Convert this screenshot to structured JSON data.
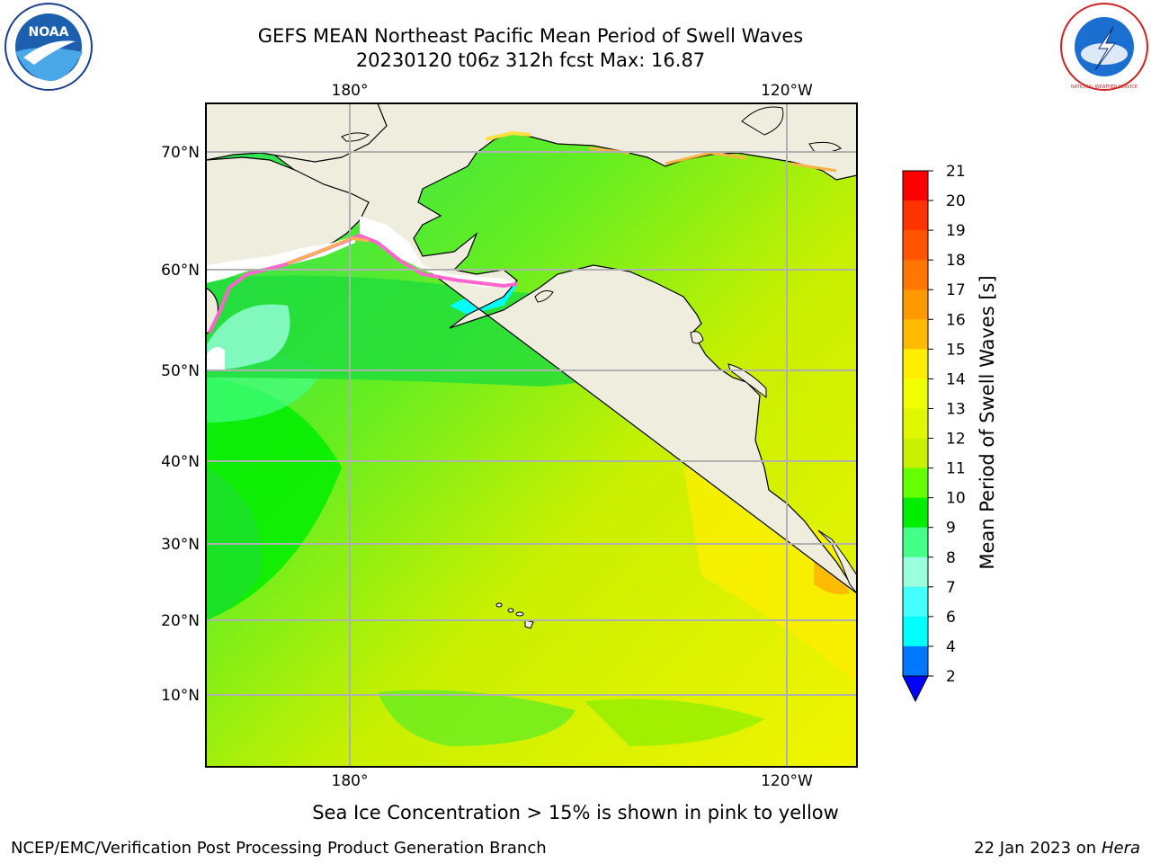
{
  "header": {
    "title_line1": "GEFS MEAN Northeast Pacific Mean Period of Swell Waves",
    "title_line2": "20230120 t06z 312h fcst   Max: 16.87"
  },
  "logos": {
    "left": "NOAA",
    "right": "NATIONAL WEATHER SERVICE"
  },
  "map": {
    "lon_labels_top": [
      "180°",
      "120°W"
    ],
    "lon_labels_bottom": [
      "180°",
      "120°W"
    ],
    "lat_labels": [
      "70°N",
      "60°N",
      "50°N",
      "40°N",
      "30°N",
      "20°N",
      "10°N"
    ],
    "colors": {
      "land": "#efedde",
      "coast": "#000000",
      "grid": "#b0b0b0",
      "ice_pink": "#ff66cc",
      "ice_orange": "#ffb347",
      "ice_yellow": "#ffe040"
    }
  },
  "colorbar": {
    "label": "Mean Period of Swell Waves [s]",
    "ticks": [
      "21",
      "20",
      "19",
      "18",
      "17",
      "16",
      "15",
      "14",
      "13",
      "12",
      "11",
      "10",
      "9",
      "8",
      "7",
      "6",
      "4",
      "2"
    ],
    "colors_top_to_bottom": [
      "#ff0000",
      "#ff3300",
      "#ff5500",
      "#ff7700",
      "#ff9900",
      "#ffbb00",
      "#ffee00",
      "#f0ff00",
      "#e0f700",
      "#c8f000",
      "#66ff00",
      "#00ee00",
      "#44ff88",
      "#99ffdd",
      "#44ffff",
      "#00ffff",
      "#00ddff",
      "#0077ff"
    ],
    "extend_color": "#0000ff"
  },
  "captions": {
    "ice_note": "Sea Ice Concentration > 15% is shown in pink to yellow",
    "footer_left": "NCEP/EMC/Verification Post Processing Product Generation Branch",
    "footer_date": "22 Jan 2023 on",
    "footer_host": "Hera"
  }
}
